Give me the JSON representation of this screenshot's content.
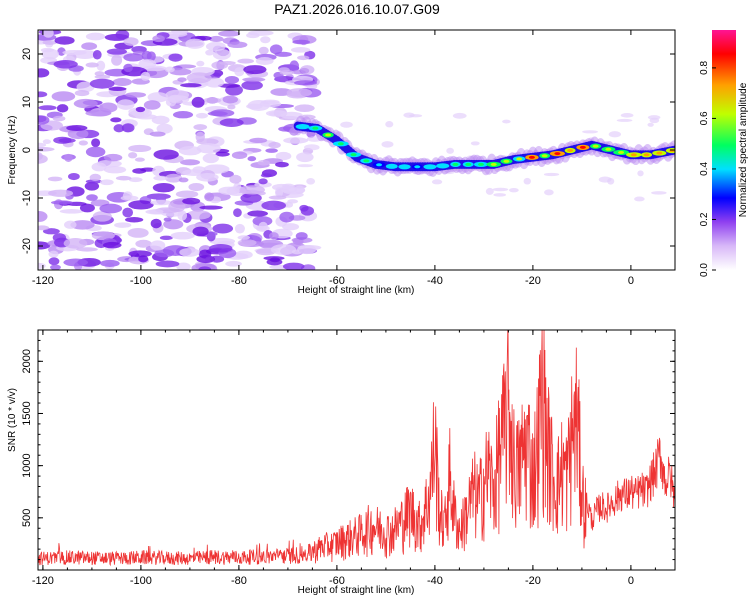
{
  "chart_data": [
    {
      "type": "heatmap",
      "title": "PAZ1.2026.016.10.07.G09",
      "xlabel": "Height of straight line (km)",
      "ylabel": "Frequency (Hz)",
      "xlim": [
        -121,
        9
      ],
      "ylim": [
        -25,
        25
      ],
      "xticks": [
        -120,
        -100,
        -80,
        -60,
        -40,
        -20,
        0
      ],
      "yticks": [
        -20,
        -10,
        0,
        10,
        20
      ],
      "xtick_labels": [
        "-120",
        "-100",
        "-80",
        "-60",
        "-40",
        "-20",
        "0"
      ],
      "ytick_labels": [
        "-20",
        "-10",
        "0",
        "10",
        "20"
      ],
      "colorbar": {
        "label": "Normalized spectral amplitude",
        "range": [
          0,
          0.95
        ],
        "ticks": [
          0.0,
          0.2,
          0.4,
          0.6,
          0.8
        ],
        "tick_labels": [
          "0.0",
          "0.2",
          "0.4",
          "0.6",
          "0.8"
        ],
        "colors": [
          "#ffffff",
          "#d8b8f8",
          "#9040f0",
          "#0000ff",
          "#00e0ff",
          "#00ff60",
          "#c0ff00",
          "#ffa000",
          "#ff0000",
          "#ff1493"
        ]
      },
      "ridge": {
        "x": [
          -68,
          -64,
          -60,
          -56,
          -52,
          -48,
          -44,
          -40,
          -36,
          -32,
          -28,
          -24,
          -20,
          -16,
          -12,
          -8,
          -4,
          0,
          4,
          9
        ],
        "freq": [
          5,
          4.5,
          2,
          -1.5,
          -3,
          -3.5,
          -3.5,
          -3.5,
          -3,
          -3,
          -3,
          -2,
          -1.5,
          -1,
          0,
          1,
          0,
          -1,
          -1,
          0
        ],
        "amplitude": [
          0.3,
          0.45,
          0.5,
          0.4,
          0.35,
          0.4,
          0.35,
          0.35,
          0.4,
          0.45,
          0.6,
          0.55,
          0.85,
          0.7,
          0.85,
          0.8,
          0.75,
          0.7,
          0.85,
          0.8
        ]
      },
      "noise_region_x": [
        -121,
        -67
      ]
    },
    {
      "type": "line",
      "xlabel": "Height of straight line (km)",
      "ylabel": "SNR (10 * v/v)",
      "xlim": [
        -121,
        9
      ],
      "ylim": [
        0,
        2300
      ],
      "xticks": [
        -120,
        -100,
        -80,
        -60,
        -40,
        -20,
        0
      ],
      "yticks": [
        500,
        1000,
        1500,
        2000
      ],
      "xtick_labels": [
        "-120",
        "-100",
        "-80",
        "-60",
        "-40",
        "-20",
        "0"
      ],
      "ytick_labels": [
        "500",
        "1000",
        "1500",
        "2000"
      ],
      "series": [
        {
          "name": "SNR",
          "color": "#ee3333",
          "x": [
            -121,
            -115,
            -110,
            -105,
            -100,
            -95,
            -90,
            -85,
            -80,
            -75,
            -70,
            -67,
            -65,
            -63,
            -61,
            -59,
            -57,
            -55,
            -53,
            -51,
            -49,
            -47,
            -45,
            -43,
            -41,
            -40,
            -39,
            -38,
            -37,
            -36,
            -35,
            -34,
            -33,
            -32,
            -31,
            -30,
            -29,
            -28,
            -27,
            -26,
            -25,
            -24,
            -23,
            -22,
            -21,
            -20,
            -19,
            -18,
            -17,
            -16,
            -15,
            -14,
            -13,
            -12,
            -11,
            -10,
            -9,
            -8,
            -7,
            -6,
            -5,
            -4,
            -3,
            -2,
            -1,
            0,
            1,
            2,
            3,
            4,
            5,
            6,
            7,
            8,
            9
          ],
          "y": [
            130,
            140,
            135,
            130,
            140,
            135,
            130,
            145,
            140,
            150,
            160,
            170,
            240,
            300,
            320,
            380,
            420,
            470,
            560,
            520,
            480,
            600,
            760,
            560,
            980,
            1650,
            720,
            560,
            1200,
            700,
            500,
            640,
            820,
            1000,
            880,
            1120,
            1260,
            1000,
            1450,
            1700,
            2150,
            1400,
            1250,
            1500,
            1600,
            1200,
            1650,
            2300,
            1600,
            1250,
            1100,
            1300,
            1200,
            1700,
            1950,
            1000,
            700,
            500,
            600,
            650,
            620,
            680,
            720,
            780,
            760,
            800,
            760,
            820,
            780,
            900,
            1000,
            1180,
            900,
            960,
            700
          ]
        }
      ]
    }
  ]
}
